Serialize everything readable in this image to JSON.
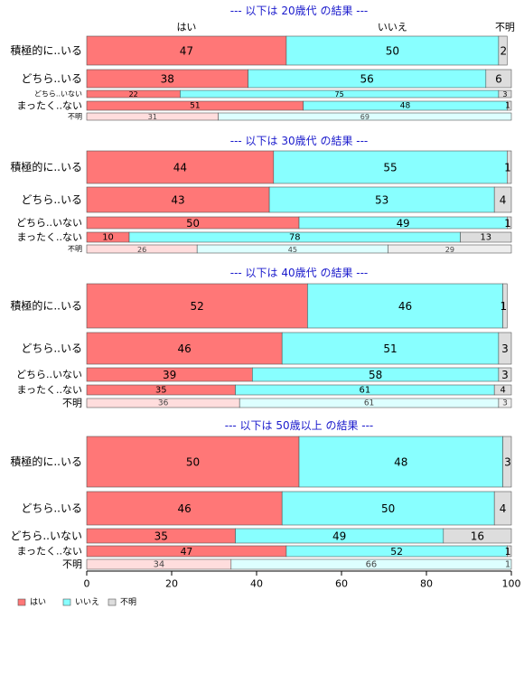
{
  "colors": {
    "hai": "#ff7777",
    "iie": "#88ffff",
    "fumei": "#dddddd",
    "hai_light": "#ffdddd",
    "iie_light": "#ddffff",
    "fumei_light": "#eeeeee",
    "title": "#1a1acc"
  },
  "chart_data": {
    "type": "bar",
    "orientation": "horizontal",
    "stacked": true,
    "xlim": [
      0,
      100
    ],
    "x_ticks": [
      "0",
      "20",
      "40",
      "60",
      "80",
      "100"
    ],
    "top_category_labels": [
      "はい",
      "いいえ",
      "不明"
    ],
    "legend": {
      "placement": "bottom-left",
      "entries": [
        "はい",
        "いいえ",
        "不明"
      ]
    },
    "panels": [
      {
        "title": "--- 以下は 20歳代 の結果 ---",
        "rows": [
          {
            "label": "積極的に..いる",
            "values": [
              47,
              50,
              2
            ]
          },
          {
            "label": "どちら..いる",
            "values": [
              38,
              56,
              6
            ]
          },
          {
            "label": "どちら..いない",
            "values": [
              22,
              75,
              3
            ]
          },
          {
            "label": "まったく..ない",
            "values": [
              51,
              48,
              1
            ]
          },
          {
            "label": "不明",
            "values": [
              31,
              69,
              0
            ]
          }
        ]
      },
      {
        "title": "--- 以下は 30歳代 の結果 ---",
        "rows": [
          {
            "label": "積極的に..いる",
            "values": [
              44,
              55,
              1
            ]
          },
          {
            "label": "どちら..いる",
            "values": [
              43,
              53,
              4
            ]
          },
          {
            "label": "どちら..いない",
            "values": [
              50,
              49,
              1
            ]
          },
          {
            "label": "まったく..ない",
            "values": [
              10,
              78,
              13
            ]
          },
          {
            "label": "不明",
            "values": [
              26,
              45,
              29
            ]
          }
        ]
      },
      {
        "title": "--- 以下は 40歳代 の結果 ---",
        "rows": [
          {
            "label": "積極的に..いる",
            "values": [
              52,
              46,
              1
            ]
          },
          {
            "label": "どちら..いる",
            "values": [
              46,
              51,
              3
            ]
          },
          {
            "label": "どちら..いない",
            "values": [
              39,
              58,
              3
            ]
          },
          {
            "label": "まったく..ない",
            "values": [
              35,
              61,
              4
            ]
          },
          {
            "label": "不明",
            "values": [
              36,
              61,
              3
            ]
          }
        ]
      },
      {
        "title": "--- 以下は 50歳以上 の結果 ---",
        "rows": [
          {
            "label": "積極的に..いる",
            "values": [
              50,
              48,
              3
            ]
          },
          {
            "label": "どちら..いる",
            "values": [
              46,
              50,
              4
            ]
          },
          {
            "label": "どちら..いない",
            "values": [
              35,
              49,
              16
            ]
          },
          {
            "label": "まったく..ない",
            "values": [
              47,
              52,
              1
            ]
          },
          {
            "label": "不明",
            "values": [
              34,
              66,
              1
            ]
          }
        ]
      }
    ]
  }
}
